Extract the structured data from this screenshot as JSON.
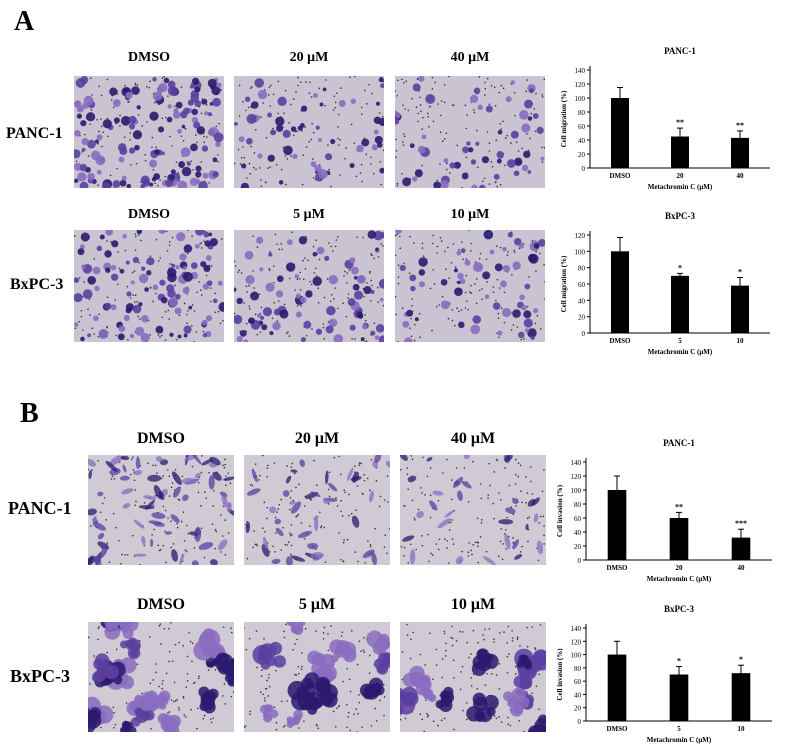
{
  "panels": [
    {
      "letter": "A",
      "rows": [
        {
          "cell_line": "PANC-1",
          "conditions": [
            "DMSO",
            "20 μM",
            "40 μM"
          ],
          "stain": "migration-sparse"
        },
        {
          "cell_line": "BxPC-3",
          "conditions": [
            "DMSO",
            "5 μM",
            "10 μM"
          ],
          "stain": "migration-dense"
        }
      ]
    },
    {
      "letter": "B",
      "rows": [
        {
          "cell_line": "PANC-1",
          "conditions": [
            "DMSO",
            "20 μM",
            "40 μM"
          ],
          "stain": "invasion-spindle"
        },
        {
          "cell_line": "BxPC-3",
          "conditions": [
            "DMSO",
            "5 μM",
            "10 μM"
          ],
          "stain": "invasion-cluster"
        }
      ]
    }
  ],
  "colors": {
    "micro_bg": "#c9c3d2",
    "micro_bg_b": "#cfcad3",
    "stain_dark": "#2a1a6e",
    "stain_mid": "#5a3fa0",
    "stain_light": "#8a6cc0",
    "bar": "#000000"
  },
  "chart_data": [
    {
      "type": "bar",
      "title": "PANC-1",
      "categories": [
        "DMSO",
        "20",
        "40"
      ],
      "values": [
        100,
        45,
        43
      ],
      "errors": [
        15,
        12,
        10
      ],
      "significance": [
        "",
        "**",
        "**"
      ],
      "xlabel": "Metachromin C (μM)",
      "ylabel": "Cell migration (%)",
      "ylim": [
        0,
        140
      ],
      "yticks": [
        0,
        20,
        40,
        60,
        80,
        100,
        120,
        140
      ]
    },
    {
      "type": "bar",
      "title": "BxPC-3",
      "categories": [
        "DMSO",
        "5",
        "10"
      ],
      "values": [
        100,
        70,
        58
      ],
      "errors": [
        17,
        3,
        10
      ],
      "significance": [
        "",
        "*",
        "*"
      ],
      "xlabel": "Metachromin C (μM)",
      "ylabel": "Cell migration (%)",
      "ylim": [
        0,
        120
      ],
      "yticks": [
        0,
        20,
        40,
        60,
        80,
        100,
        120
      ]
    },
    {
      "type": "bar",
      "title": "PANC-1",
      "categories": [
        "DMSO",
        "20",
        "40"
      ],
      "values": [
        100,
        60,
        32
      ],
      "errors": [
        20,
        8,
        12
      ],
      "significance": [
        "",
        "**",
        "***"
      ],
      "xlabel": "Metachromin C (μM)",
      "ylabel": "Cell invasion (%)",
      "ylim": [
        0,
        140
      ],
      "yticks": [
        0,
        20,
        40,
        60,
        80,
        100,
        120,
        140
      ]
    },
    {
      "type": "bar",
      "title": "BxPC-3",
      "categories": [
        "DMSO",
        "5",
        "10"
      ],
      "values": [
        100,
        70,
        72
      ],
      "errors": [
        20,
        12,
        12
      ],
      "significance": [
        "",
        "*",
        "*"
      ],
      "xlabel": "Metachromin C (μM)",
      "ylabel": "Cell invasion (%)",
      "ylim": [
        0,
        140
      ],
      "yticks": [
        0,
        20,
        40,
        60,
        80,
        100,
        120,
        140
      ]
    }
  ]
}
